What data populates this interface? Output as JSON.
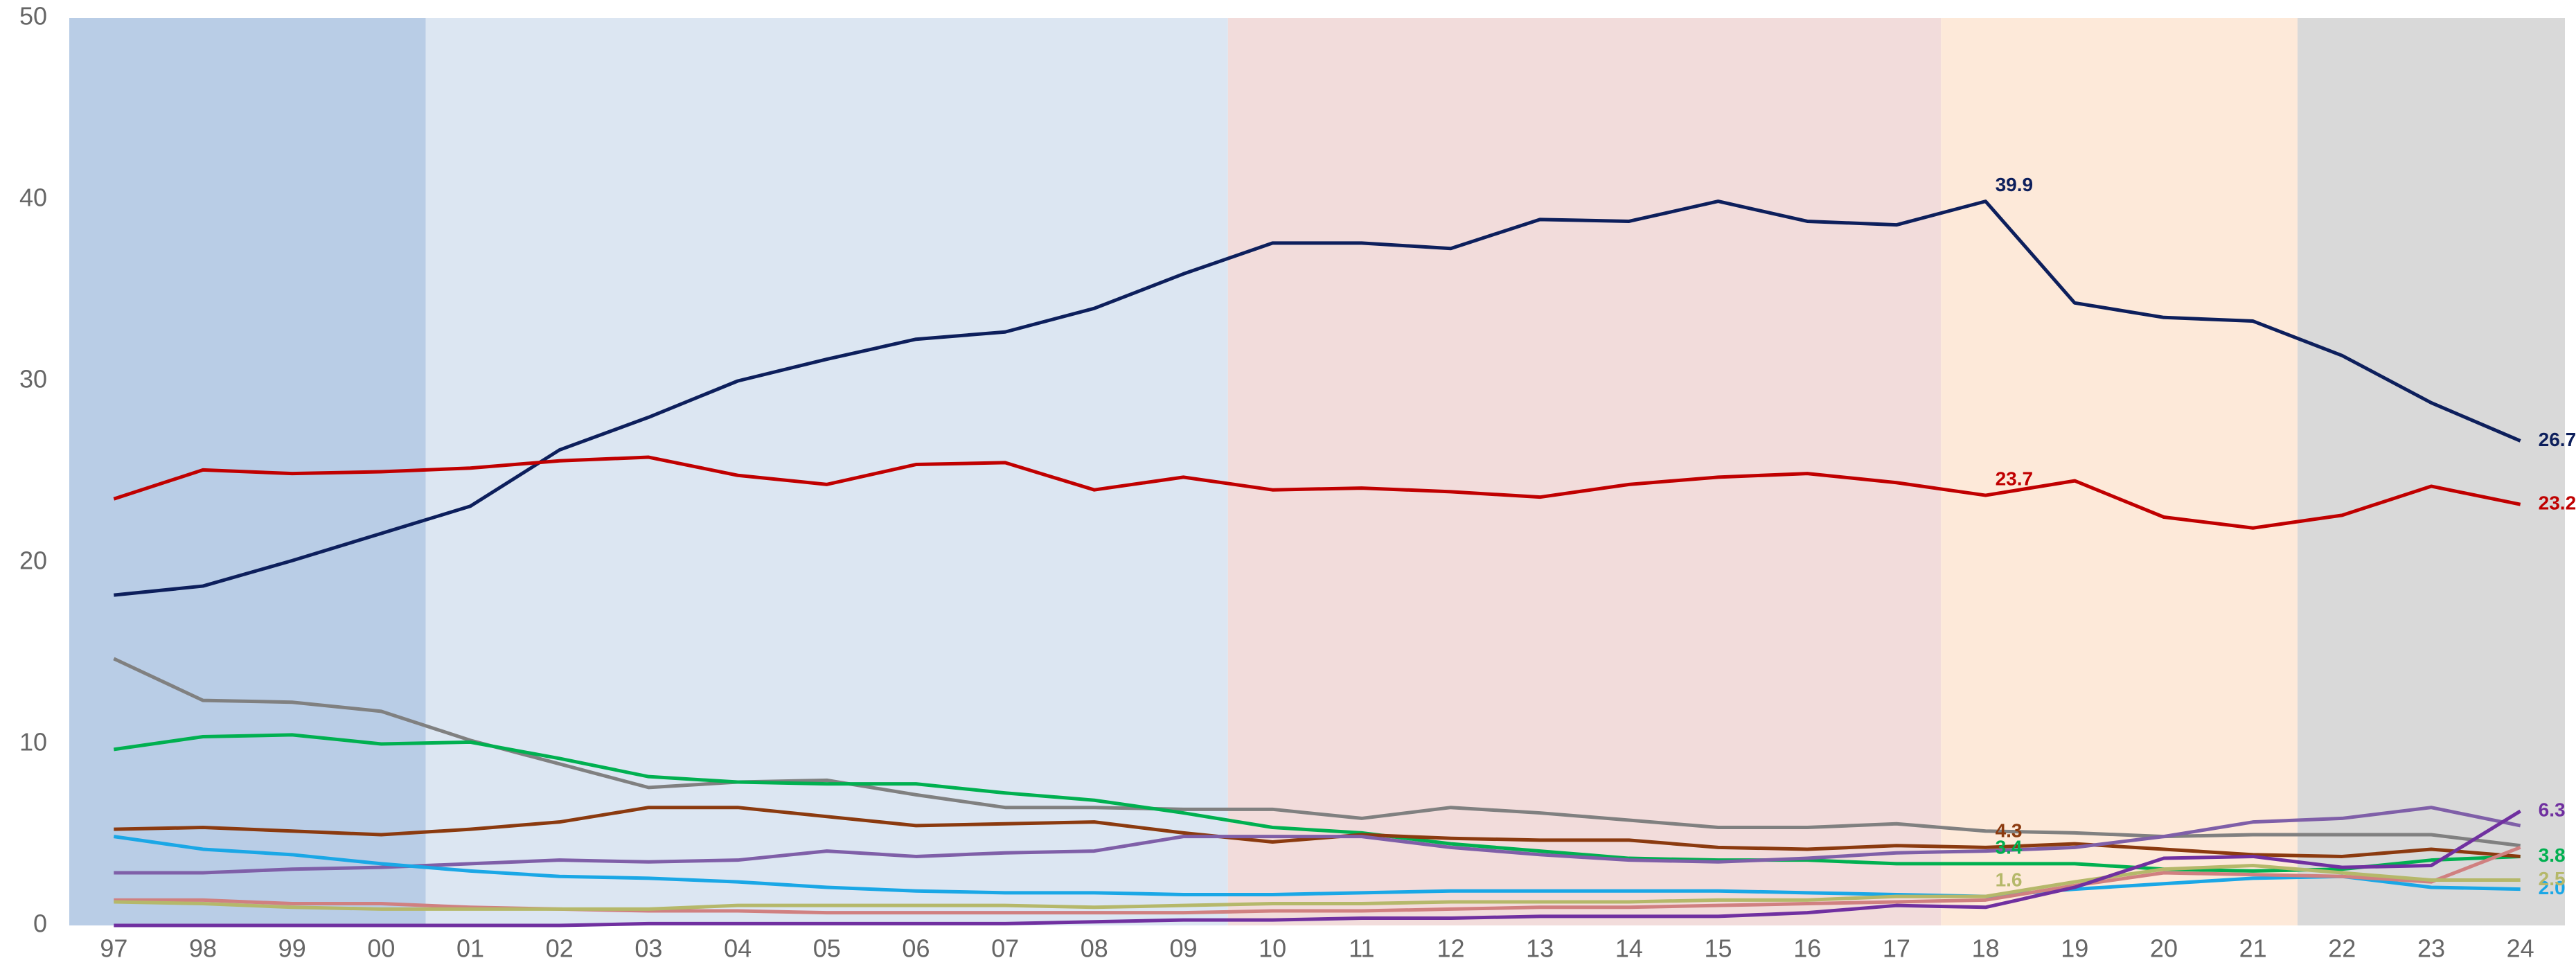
{
  "chart_data": {
    "type": "line",
    "categories": [
      "97",
      "98",
      "99",
      "00",
      "01",
      "02",
      "03",
      "04",
      "05",
      "06",
      "07",
      "08",
      "09",
      "10",
      "11",
      "12",
      "13",
      "14",
      "15",
      "16",
      "17",
      "18",
      "19",
      "20",
      "21",
      "22",
      "23",
      "24"
    ],
    "ylim": [
      0,
      50
    ],
    "yticks": [
      0,
      10,
      20,
      30,
      40,
      50
    ],
    "grid": false,
    "series": [
      {
        "color": "#0d1f5c",
        "values": [
          18.2,
          18.7,
          20.1,
          21.6,
          23.1,
          26.2,
          28.0,
          30.0,
          31.2,
          32.3,
          32.7,
          34.0,
          35.9,
          37.6,
          37.6,
          37.3,
          38.9,
          38.8,
          39.9,
          38.8,
          38.6,
          39.9,
          34.3,
          33.5,
          33.3,
          31.4,
          28.8,
          26.7
        ],
        "value_labels": [
          null,
          null,
          null,
          null,
          null,
          null,
          null,
          null,
          null,
          null,
          null,
          null,
          null,
          null,
          null,
          null,
          null,
          null,
          null,
          null,
          null,
          "39.9",
          null,
          null,
          null,
          null,
          null,
          "26.7"
        ]
      },
      {
        "color": "#c00000",
        "values": [
          23.5,
          25.1,
          24.9,
          25.0,
          25.2,
          25.6,
          25.8,
          24.8,
          24.3,
          25.4,
          25.5,
          24.0,
          24.7,
          24.0,
          24.1,
          23.9,
          23.6,
          24.3,
          24.7,
          24.9,
          24.4,
          23.7,
          24.5,
          22.5,
          21.9,
          22.6,
          24.2,
          23.2
        ],
        "value_labels": [
          null,
          null,
          null,
          null,
          null,
          null,
          null,
          null,
          null,
          null,
          null,
          null,
          null,
          null,
          null,
          null,
          null,
          null,
          null,
          null,
          null,
          "23.7",
          null,
          null,
          null,
          null,
          null,
          "23.2"
        ]
      },
      {
        "color": "#808080",
        "values": [
          14.7,
          12.4,
          12.3,
          11.8,
          10.2,
          8.9,
          7.6,
          7.9,
          8.0,
          7.2,
          6.5,
          6.5,
          6.4,
          6.4,
          5.9,
          6.5,
          6.2,
          5.8,
          5.4,
          5.4,
          5.6,
          5.2,
          5.1,
          4.9,
          5.0,
          5.0,
          5.0,
          4.4
        ]
      },
      {
        "color": "#00b050",
        "values": [
          9.7,
          10.4,
          10.5,
          10.0,
          10.1,
          9.2,
          8.2,
          7.9,
          7.8,
          7.8,
          7.3,
          6.9,
          6.2,
          5.4,
          5.1,
          4.5,
          4.1,
          3.7,
          3.6,
          3.6,
          3.4,
          3.4,
          3.4,
          3.1,
          3.0,
          3.1,
          3.6,
          3.8
        ],
        "value_labels": [
          null,
          null,
          null,
          null,
          null,
          null,
          null,
          null,
          null,
          null,
          null,
          null,
          null,
          null,
          null,
          null,
          null,
          null,
          null,
          null,
          null,
          "3.4",
          null,
          null,
          null,
          null,
          null,
          "3.8"
        ]
      },
      {
        "color": "#8b3a0f",
        "values": [
          5.3,
          5.4,
          5.2,
          5.0,
          5.3,
          5.7,
          6.5,
          6.5,
          6.0,
          5.5,
          5.6,
          5.7,
          5.1,
          4.6,
          5.0,
          4.8,
          4.7,
          4.7,
          4.3,
          4.2,
          4.4,
          4.3,
          4.5,
          4.2,
          3.9,
          3.8,
          4.2,
          3.8
        ],
        "value_labels": [
          null,
          null,
          null,
          null,
          null,
          null,
          null,
          null,
          null,
          null,
          null,
          null,
          null,
          null,
          null,
          null,
          null,
          null,
          null,
          null,
          null,
          "4.3",
          null,
          null,
          null,
          null,
          null,
          null
        ]
      },
      {
        "color": "#7f5fa8",
        "values": [
          2.9,
          2.9,
          3.1,
          3.2,
          3.4,
          3.6,
          3.5,
          3.6,
          4.1,
          3.8,
          4.0,
          4.1,
          4.9,
          4.9,
          4.9,
          4.3,
          3.9,
          3.6,
          3.5,
          3.7,
          4.0,
          4.1,
          4.3,
          4.9,
          5.7,
          5.9,
          6.5,
          5.5
        ]
      },
      {
        "color": "#1aa7e6",
        "values": [
          4.9,
          4.2,
          3.9,
          3.4,
          3.0,
          2.7,
          2.6,
          2.4,
          2.1,
          1.9,
          1.8,
          1.8,
          1.7,
          1.7,
          1.8,
          1.9,
          1.9,
          1.9,
          1.9,
          1.8,
          1.7,
          1.6,
          2.0,
          2.3,
          2.6,
          2.7,
          2.1,
          2.0
        ],
        "value_labels": [
          null,
          null,
          null,
          null,
          null,
          null,
          null,
          null,
          null,
          null,
          null,
          null,
          null,
          null,
          null,
          null,
          null,
          null,
          null,
          null,
          null,
          null,
          null,
          null,
          null,
          null,
          null,
          "2.0"
        ]
      },
      {
        "color": "#d08080",
        "values": [
          1.4,
          1.4,
          1.2,
          1.2,
          1.0,
          0.9,
          0.8,
          0.8,
          0.7,
          0.7,
          0.7,
          0.7,
          0.7,
          0.8,
          0.8,
          0.9,
          1.0,
          1.0,
          1.1,
          1.2,
          1.3,
          1.4,
          2.2,
          2.9,
          2.8,
          2.7,
          2.4,
          4.3
        ]
      },
      {
        "color": "#b5b86a",
        "values": [
          1.3,
          1.2,
          1.0,
          0.9,
          0.9,
          0.9,
          0.9,
          1.1,
          1.1,
          1.1,
          1.1,
          1.0,
          1.1,
          1.2,
          1.2,
          1.3,
          1.3,
          1.3,
          1.4,
          1.4,
          1.6,
          1.6,
          2.4,
          3.1,
          3.3,
          2.9,
          2.5,
          2.5
        ],
        "value_labels": [
          null,
          null,
          null,
          null,
          null,
          null,
          null,
          null,
          null,
          null,
          null,
          null,
          null,
          null,
          null,
          null,
          null,
          null,
          null,
          null,
          null,
          "1.6",
          null,
          null,
          null,
          null,
          null,
          "2.5"
        ]
      },
      {
        "color": "#7030a0",
        "values": [
          0,
          0,
          0,
          0,
          0,
          0,
          0.1,
          0.1,
          0.1,
          0.1,
          0.1,
          0.2,
          0.3,
          0.3,
          0.4,
          0.4,
          0.5,
          0.5,
          0.5,
          0.7,
          1.1,
          1.0,
          2.1,
          3.7,
          3.8,
          3.2,
          3.3,
          6.3
        ],
        "value_labels": [
          null,
          null,
          null,
          null,
          null,
          null,
          null,
          null,
          null,
          null,
          null,
          null,
          null,
          null,
          null,
          null,
          null,
          null,
          null,
          null,
          null,
          null,
          null,
          null,
          null,
          null,
          null,
          "6.3"
        ]
      }
    ]
  }
}
